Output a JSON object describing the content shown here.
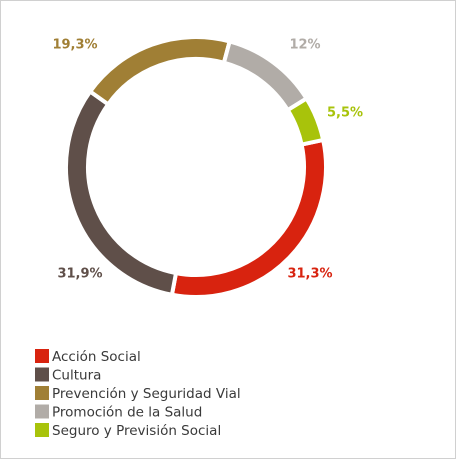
{
  "chart_data": {
    "type": "pie",
    "donut": true,
    "categories": [
      "Acción Social",
      "Cultura",
      "Prevención y Seguridad Vial",
      "Promoción de la Salud",
      "Seguro y Previsión Social"
    ],
    "values": [
      31.3,
      31.9,
      19.3,
      12,
      5.5
    ],
    "value_labels": [
      "31,3%",
      "31,9%",
      "19,3%",
      "12%",
      "5,5%"
    ],
    "colors": [
      "#d8230f",
      "#5f4f49",
      "#a07f35",
      "#b1aca7",
      "#a8c30b"
    ],
    "legend": "bottom-left"
  }
}
